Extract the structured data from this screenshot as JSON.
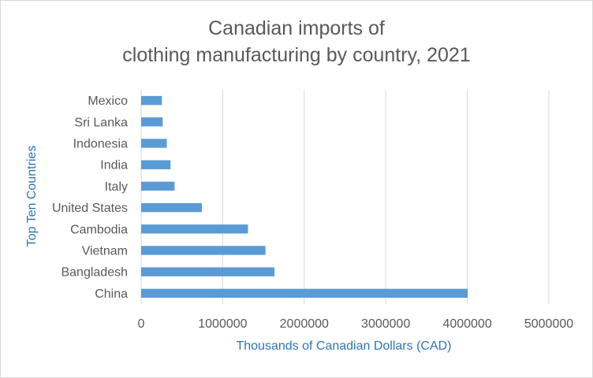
{
  "chart_data": {
    "type": "bar",
    "orientation": "horizontal",
    "title_lines": [
      "Canadian imports of",
      "clothing manufacturing by country, 2021"
    ],
    "xlabel": "Thousands of Canadian Dollars (CAD)",
    "ylabel": "Top Ten Countries",
    "categories": [
      "Mexico",
      "Sri Lanka",
      "Indonesia",
      "India",
      "Italy",
      "United States",
      "Cambodia",
      "Vietnam",
      "Bangladesh",
      "China"
    ],
    "values": [
      255000,
      265000,
      315000,
      360000,
      410000,
      745000,
      1310000,
      1525000,
      1635000,
      4005000
    ],
    "xlim": [
      0,
      5000000
    ],
    "xticks": [
      0,
      1000000,
      2000000,
      3000000,
      4000000,
      5000000
    ],
    "xtick_labels": [
      "0",
      "1000000",
      "2000000",
      "3000000",
      "4000000",
      "5000000"
    ],
    "grid": "vertical",
    "legend": "none",
    "colors": {
      "bar": "#5b9bd5",
      "grid": "#d9d9d9",
      "tick_text": "#595959",
      "axis_title": "#2e75b6",
      "title": "#595959"
    }
  }
}
